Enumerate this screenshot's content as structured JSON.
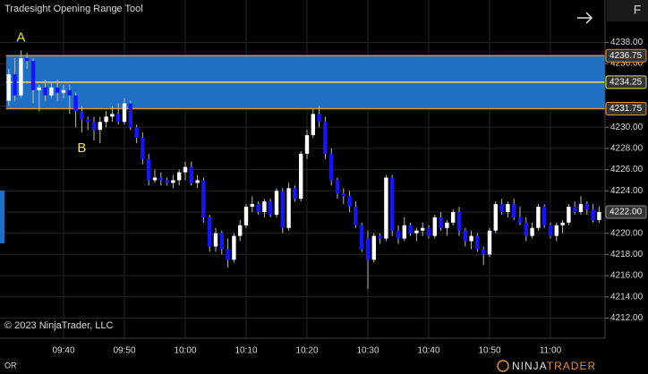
{
  "chart_data": {
    "type": "candlestick",
    "title": "Tradesight Opening Range Tool",
    "up_color": "#ffffff",
    "down_color": "#1414ff",
    "x": [
      "09:31",
      "09:32",
      "09:33",
      "09:34",
      "09:35",
      "09:36",
      "09:37",
      "09:38",
      "09:39",
      "09:40",
      "09:41",
      "09:42",
      "09:43",
      "09:44",
      "09:45",
      "09:46",
      "09:47",
      "09:48",
      "09:49",
      "09:50",
      "09:51",
      "09:52",
      "09:53",
      "09:54",
      "09:55",
      "09:56",
      "09:57",
      "09:58",
      "09:59",
      "10:00",
      "10:01",
      "10:02",
      "10:03",
      "10:04",
      "10:05",
      "10:06",
      "10:07",
      "10:08",
      "10:09",
      "10:10",
      "10:11",
      "10:12",
      "10:13",
      "10:14",
      "10:15",
      "10:16",
      "10:17",
      "10:18",
      "10:19",
      "10:20",
      "10:21",
      "10:22",
      "10:23",
      "10:24",
      "10:25",
      "10:26",
      "10:27",
      "10:28",
      "10:29",
      "10:30",
      "10:31",
      "10:32",
      "10:33",
      "10:34",
      "10:35",
      "10:36",
      "10:37",
      "10:38",
      "10:39",
      "10:40",
      "10:41",
      "10:42",
      "10:43",
      "10:44",
      "10:45",
      "10:46",
      "10:47",
      "10:48",
      "10:49",
      "10:50",
      "10:51",
      "10:52",
      "10:53",
      "10:54",
      "10:55",
      "10:56",
      "10:57",
      "10:58",
      "10:59",
      "11:00",
      "11:01",
      "11:02",
      "11:03",
      "11:04",
      "11:05",
      "11:06",
      "11:07",
      "11:08"
    ],
    "open": [
      4232.5,
      4235,
      4233,
      4236.5,
      4236.25,
      4233.5,
      4233.75,
      4233,
      4233.75,
      4233.25,
      4233.5,
      4233,
      4231.5,
      4230.75,
      4230.5,
      4229.75,
      4230.5,
      4231,
      4231.25,
      4230.5,
      4232.25,
      4230,
      4229,
      4227,
      4225,
      4225.25,
      4225,
      4224.75,
      4225,
      4225.75,
      4226.25,
      4224.75,
      4225,
      4221.5,
      4218.75,
      4220,
      4218.5,
      4217.5,
      4219.75,
      4220.75,
      4222.5,
      4222.75,
      4222,
      4223,
      4221.75,
      4224,
      4220.5,
      4224.25,
      4223.25,
      4227.5,
      4229.25,
      4231.25,
      4230.5,
      4227.5,
      4225,
      4223.75,
      4223.5,
      4222.5,
      4220.75,
      4219.5,
      4217.5,
      4219.75,
      4219.5,
      4225.25,
      4220.25,
      4219.5,
      4220.75,
      4220,
      4220.25,
      4220.5,
      4219.75,
      4221.5,
      4220.5,
      4221,
      4222,
      4220.25,
      4219.25,
      4219.75,
      4218.5,
      4218,
      4220.25,
      4222.75,
      4222,
      4222.75,
      4221.5,
      4221,
      4219.75,
      4220.5,
      4222.5,
      4220.75,
      4219.75,
      4220.75,
      4221,
      4222.5,
      4222,
      4222.75,
      4222.25,
      4221.25
    ],
    "high": [
      4235.5,
      4236.5,
      4237.25,
      4237,
      4236.5,
      4234,
      4234.5,
      4234.25,
      4234.5,
      4234,
      4234,
      4233.25,
      4232,
      4231,
      4231,
      4231,
      4231.5,
      4232,
      4232.25,
      4232.75,
      4232.5,
      4230.25,
      4229.5,
      4227.5,
      4226,
      4225.75,
      4225.25,
      4225.5,
      4226,
      4226.75,
      4226.75,
      4225.5,
      4225.25,
      4221.75,
      4220.5,
      4220.25,
      4219.5,
      4220,
      4221.25,
      4222.75,
      4223.5,
      4223,
      4223.25,
      4223.25,
      4224.25,
      4224.25,
      4224.75,
      4224.5,
      4227.75,
      4229.75,
      4231.75,
      4232,
      4231,
      4228,
      4225.25,
      4224.25,
      4224,
      4223,
      4221,
      4220.25,
      4220,
      4220,
      4225.5,
      4225.5,
      4220.75,
      4221.5,
      4221,
      4220.5,
      4221,
      4220.75,
      4221.75,
      4222,
      4221.25,
      4222.25,
      4222.5,
      4220.5,
      4220.25,
      4220,
      4218.75,
      4220.5,
      4223,
      4223.25,
      4223,
      4223.25,
      4222.5,
      4221.5,
      4221,
      4222.75,
      4222.75,
      4221,
      4221,
      4221.25,
      4222.75,
      4223,
      4223.5,
      4223,
      4222.75,
      4222.5
    ],
    "low": [
      4232,
      4232.5,
      4232.75,
      4235.5,
      4232.25,
      4231.5,
      4232.5,
      4232.75,
      4232.5,
      4232.75,
      4231.25,
      4230,
      4229.5,
      4229.75,
      4228.75,
      4228.5,
      4230,
      4230.5,
      4230.25,
      4230.25,
      4229.75,
      4228.5,
      4226.5,
      4224.5,
      4224.75,
      4224.5,
      4224.5,
      4224.25,
      4224.5,
      4225,
      4224.5,
      4224.25,
      4221,
      4218.25,
      4218.25,
      4218,
      4216.75,
      4217.25,
      4219.25,
      4220.5,
      4222,
      4221.75,
      4221.5,
      4221.5,
      4221.5,
      4220,
      4220.25,
      4223,
      4223,
      4227,
      4229,
      4230,
      4227,
      4224.5,
      4223.25,
      4222.75,
      4222,
      4220.5,
      4218.25,
      4214.75,
      4217.25,
      4219,
      4219.25,
      4219.75,
      4219,
      4219.25,
      4219.75,
      4219.25,
      4219.75,
      4219.5,
      4219.5,
      4220.25,
      4219.75,
      4220.75,
      4219.75,
      4218.75,
      4218.5,
      4218.25,
      4217,
      4217.75,
      4220,
      4221.75,
      4221.5,
      4221.25,
      4220.75,
      4219.25,
      4219.5,
      4220.25,
      4220.5,
      4219.5,
      4219.25,
      4220,
      4220.75,
      4221.75,
      4221.75,
      4221.75,
      4221,
      4221
    ],
    "close": [
      4235,
      4233,
      4236.5,
      4236.25,
      4233.5,
      4233.75,
      4233,
      4233.75,
      4233.25,
      4233.5,
      4233,
      4231.5,
      4230.75,
      4230.5,
      4229.75,
      4230.5,
      4231,
      4231.25,
      4230.5,
      4232.25,
      4230,
      4229,
      4227,
      4225,
      4225.25,
      4225,
      4224.75,
      4225,
      4225.75,
      4226.25,
      4224.75,
      4225,
      4221.5,
      4218.75,
      4220,
      4218.5,
      4217.5,
      4219.75,
      4220.75,
      4222.5,
      4222.75,
      4222,
      4223,
      4221.75,
      4224,
      4220.5,
      4224.25,
      4223.25,
      4227.5,
      4229.25,
      4231.25,
      4230.5,
      4227.5,
      4225,
      4223.75,
      4223.5,
      4222.5,
      4220.75,
      4218.5,
      4217.5,
      4219.75,
      4219.5,
      4225.25,
      4220.25,
      4219.5,
      4220.75,
      4220,
      4220.25,
      4220.5,
      4219.75,
      4221.5,
      4220.5,
      4221,
      4222,
      4220.25,
      4219.25,
      4219.75,
      4218.5,
      4218,
      4220.25,
      4222.75,
      4222,
      4222.75,
      4221.5,
      4221,
      4219.75,
      4220.5,
      4222.5,
      4220.75,
      4219.75,
      4220.75,
      4221,
      4222.5,
      4222,
      4222.75,
      4222.25,
      4221.25,
      4222
    ],
    "ylim": [
      4210.1,
      4242.0
    ],
    "yticks": [
      {
        "value": 4212,
        "label": "4212.00"
      },
      {
        "value": 4214,
        "label": "4214.00"
      },
      {
        "value": 4216,
        "label": "4216.00"
      },
      {
        "value": 4218,
        "label": "4218.00"
      },
      {
        "value": 4220,
        "label": "4220.00"
      },
      {
        "value": 4222,
        "label": "4222.00"
      },
      {
        "value": 4224,
        "label": "4224.00"
      },
      {
        "value": 4226,
        "label": "4226.00"
      },
      {
        "value": 4228,
        "label": "4228.00"
      },
      {
        "value": 4230,
        "label": "4230.00"
      },
      {
        "value": 4232,
        "label": "4232.00"
      },
      {
        "value": 4234,
        "label": "4234.00"
      },
      {
        "value": 4236,
        "label": "4236.00"
      },
      {
        "value": 4238,
        "label": "4238.00"
      }
    ],
    "xticks": [
      "09:40",
      "09:50",
      "10:00",
      "10:10",
      "10:20",
      "10:30",
      "10:40",
      "10:50",
      "11:00"
    ],
    "grid": true,
    "opening_range": {
      "high": 4236.75,
      "mid": 4234.25,
      "low": 4231.75,
      "color": "#1f6fc4",
      "edge_color": "#e6902a",
      "mid_color": "#e6e63a"
    },
    "last_price": {
      "value": 4222,
      "label": "4222.00"
    },
    "annotations": [
      {
        "text": "A",
        "x": "09:33",
        "position": "above"
      },
      {
        "text": "B",
        "x": "09:43",
        "position": "below"
      }
    ],
    "copyright": "© 2023 NinjaTrader, LLC"
  },
  "footer": {
    "tab": "OR",
    "logo": [
      "NINJA",
      "TRADER"
    ]
  },
  "toolbar": {
    "button": "F"
  }
}
